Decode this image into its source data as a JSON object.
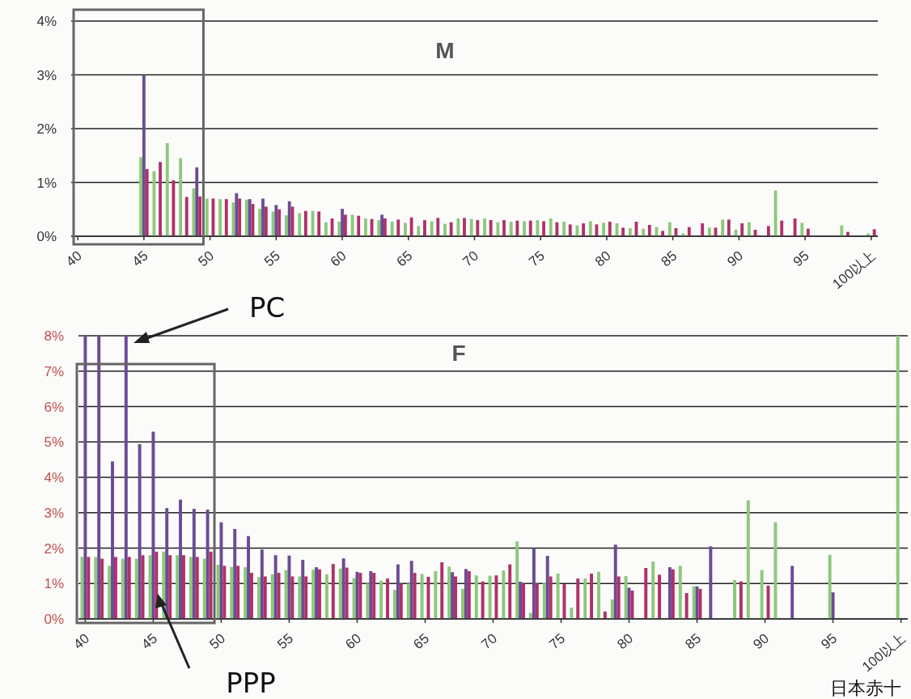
{
  "chart_data": [
    {
      "type": "bar",
      "title": "M",
      "categories": [
        "40",
        null,
        null,
        null,
        null,
        "45",
        null,
        null,
        null,
        null,
        "50",
        null,
        null,
        null,
        null,
        "55",
        null,
        null,
        null,
        null,
        "60",
        null,
        null,
        null,
        null,
        "65",
        null,
        null,
        null,
        null,
        "70",
        null,
        null,
        null,
        null,
        "75",
        null,
        null,
        null,
        null,
        "80",
        null,
        null,
        null,
        null,
        "85",
        null,
        null,
        null,
        null,
        "90",
        null,
        null,
        null,
        null,
        "95",
        null,
        null,
        null,
        null,
        "100以上"
      ],
      "series": [
        {
          "color": "#8cc97a",
          "values": [
            null,
            null,
            null,
            null,
            null,
            1.47,
            1.21,
            1.73,
            1.45,
            0.89,
            0.7,
            0.69,
            0.63,
            0.68,
            0.51,
            0.46,
            0.39,
            0.43,
            0.47,
            0.26,
            0.27,
            0.4,
            0.33,
            0.3,
            0.27,
            0.25,
            0.19,
            0.28,
            0.23,
            0.33,
            0.32,
            0.33,
            0.26,
            0.27,
            0.28,
            0.3,
            0.33,
            0.27,
            0.2,
            0.28,
            0.25,
            0.24,
            0.15,
            0.14,
            0.17,
            0.26,
            0.05,
            null,
            0.16,
            0.31,
            0.12,
            0.26,
            null,
            0.85,
            null,
            0.25,
            null,
            null,
            0.2,
            null,
            0.05
          ]
        },
        {
          "color": "#6a4c93",
          "values": [
            null,
            null,
            null,
            null,
            null,
            3.0,
            null,
            null,
            null,
            1.28,
            null,
            null,
            0.8,
            0.69,
            0.7,
            0.58,
            0.65,
            null,
            null,
            null,
            0.51,
            null,
            null,
            0.4,
            null,
            null,
            null,
            null,
            null,
            null,
            null,
            null,
            null,
            null,
            null,
            null,
            null,
            null,
            null,
            null,
            null,
            null,
            null,
            null,
            null,
            null,
            null,
            null,
            null,
            null,
            null,
            null,
            null,
            null,
            null,
            null,
            null,
            null,
            null,
            null,
            null
          ]
        },
        {
          "color": "#b0306a",
          "values": [
            null,
            null,
            null,
            null,
            null,
            1.25,
            1.38,
            1.04,
            0.73,
            0.74,
            0.7,
            0.69,
            0.7,
            0.6,
            0.55,
            0.5,
            0.55,
            0.47,
            0.46,
            0.33,
            0.4,
            0.38,
            0.32,
            0.33,
            0.31,
            0.35,
            0.3,
            0.34,
            0.26,
            0.34,
            0.3,
            0.3,
            0.3,
            0.29,
            0.29,
            0.28,
            0.26,
            0.22,
            0.24,
            0.22,
            0.27,
            0.16,
            0.27,
            0.21,
            0.1,
            0.15,
            0.17,
            0.24,
            0.16,
            0.31,
            0.24,
            0.12,
            0.19,
            0.29,
            0.33,
            0.14,
            null,
            null,
            0.08,
            null,
            0.13
          ]
        }
      ],
      "ylim": [
        0,
        4
      ],
      "yticks": [
        {
          "value": 0,
          "label": "0%"
        },
        {
          "value": 1,
          "label": "1%"
        },
        {
          "value": 2,
          "label": "2%"
        },
        {
          "value": 3,
          "label": "3%"
        },
        {
          "value": 4,
          "label": "4%"
        }
      ],
      "grid": "y"
    },
    {
      "type": "bar",
      "title": "F",
      "categories": [
        "40",
        null,
        null,
        null,
        null,
        "45",
        null,
        null,
        null,
        null,
        "50",
        null,
        null,
        null,
        null,
        "55",
        null,
        null,
        null,
        null,
        "60",
        null,
        null,
        null,
        null,
        "65",
        null,
        null,
        null,
        null,
        "70",
        null,
        null,
        null,
        null,
        "75",
        null,
        null,
        null,
        null,
        "80",
        null,
        null,
        null,
        null,
        "85",
        null,
        null,
        null,
        null,
        "90",
        null,
        null,
        null,
        null,
        "95",
        null,
        null,
        null,
        null,
        "100以上"
      ],
      "series": [
        {
          "color": "#8cc97a",
          "values": [
            1.75,
            1.75,
            1.5,
            1.7,
            1.7,
            1.8,
            1.9,
            1.8,
            1.75,
            1.7,
            1.53,
            1.47,
            1.46,
            1.18,
            1.26,
            1.38,
            1.2,
            1.39,
            1.26,
            1.42,
            1.15,
            1.0,
            1.08,
            0.82,
            1.0,
            1.27,
            1.35,
            1.48,
            0.85,
            1.23,
            1.22,
            1.37,
            2.19,
            0.17,
            1.02,
            1.28,
            0.32,
            1.14,
            1.33,
            0.55,
            1.21,
            null,
            1.62,
            null,
            1.5,
            0.92,
            null,
            null,
            1.1,
            3.35,
            1.38,
            2.73,
            null,
            null,
            null,
            1.81,
            null,
            null,
            null,
            null,
            8
          ]
        },
        {
          "color": "#6a4c93",
          "values": [
            8,
            8,
            4.45,
            8,
            4.94,
            5.29,
            3.13,
            3.37,
            3.11,
            3.09,
            2.73,
            2.54,
            2.34,
            1.96,
            1.8,
            1.79,
            1.67,
            1.46,
            null,
            1.71,
            1.33,
            1.35,
            null,
            1.54,
            1.64,
            null,
            null,
            1.32,
            1.41,
            null,
            null,
            null,
            1.05,
            2.0,
            1.78,
            null,
            null,
            null,
            null,
            2.1,
            0.88,
            null,
            null,
            1.46,
            null,
            0.92,
            2.05,
            null,
            null,
            null,
            null,
            null,
            1.5,
            null,
            null,
            0.75,
            null,
            null,
            null,
            null,
            null
          ]
        },
        {
          "color": "#b0306a",
          "values": [
            1.75,
            1.7,
            1.75,
            1.75,
            1.8,
            1.9,
            1.8,
            1.8,
            1.75,
            1.9,
            1.5,
            1.5,
            1.3,
            1.2,
            1.3,
            1.2,
            1.2,
            1.4,
            1.55,
            1.45,
            1.3,
            1.3,
            1.14,
            1.0,
            1.3,
            1.19,
            1.6,
            1.2,
            1.35,
            1.06,
            1.23,
            1.54,
            1.0,
            1.0,
            1.2,
            0.98,
            1.14,
            1.28,
            0.21,
            1.2,
            0.8,
            1.44,
            1.25,
            1.4,
            0.73,
            0.85,
            null,
            null,
            1.06,
            null,
            0.94,
            null,
            null,
            null,
            null,
            null,
            null,
            null,
            null,
            null,
            null
          ]
        }
      ],
      "ylim": [
        0,
        8
      ],
      "yticks": [
        {
          "value": 0,
          "label": "0%"
        },
        {
          "value": 1,
          "label": "1%"
        },
        {
          "value": 2,
          "label": "2%"
        },
        {
          "value": 3,
          "label": "3%"
        },
        {
          "value": 4,
          "label": "4%"
        },
        {
          "value": 5,
          "label": "5%"
        },
        {
          "value": 6,
          "label": "6%"
        },
        {
          "value": 7,
          "label": "7%"
        },
        {
          "value": 8,
          "label": "8%"
        }
      ],
      "grid": "y",
      "annotations": [
        "PC",
        "PPP",
        "日本赤十"
      ]
    }
  ]
}
